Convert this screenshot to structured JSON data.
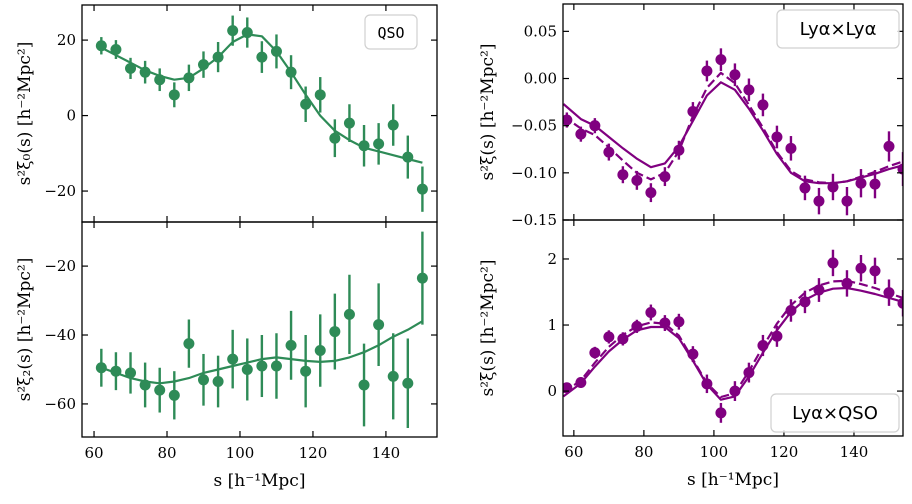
{
  "colors": {
    "qso": "#2e8b57",
    "lya": "#800080"
  },
  "chart_data": [
    {
      "id": "qso-monopole",
      "type": "scatter",
      "panel": "top-left",
      "legend": "QSO",
      "legend_placement": "top-right",
      "ylabel": "s²ξ₀(s) [h⁻²Mpc²]",
      "xlabel": "",
      "xlim": [
        56.7,
        154
      ],
      "ylim": [
        -28.2,
        29.3
      ],
      "xticks": [
        60,
        80,
        100,
        120,
        140
      ],
      "yticks": [
        -20,
        0,
        20
      ],
      "ytick_labels": [
        "−20",
        "0",
        "20"
      ],
      "points": {
        "x": [
          62,
          66,
          70,
          74,
          78,
          82,
          86,
          90,
          94,
          98,
          102,
          106,
          110,
          114,
          118,
          122,
          126,
          130,
          134,
          138,
          142,
          146,
          150
        ],
        "y": [
          18.5,
          17.5,
          12.5,
          11.5,
          9.5,
          5.5,
          10,
          13.5,
          15.5,
          22.5,
          22,
          15.5,
          17,
          11.5,
          3,
          5.5,
          -6,
          -2,
          -8,
          -7.5,
          -2.5,
          -11,
          -19.5
        ],
        "err": [
          2.3,
          2.5,
          2.8,
          3,
          3,
          3.3,
          3.5,
          3.5,
          4,
          4,
          4,
          4.2,
          4.5,
          4.5,
          4.7,
          4.7,
          5,
          5,
          5.5,
          5.5,
          5.5,
          5.7,
          6
        ]
      },
      "series": [
        {
          "name": "model",
          "style": "solid",
          "x": [
            62,
            66,
            70,
            74,
            78,
            82,
            86,
            90,
            94,
            98,
            102,
            106,
            110,
            114,
            118,
            122,
            126,
            130,
            134,
            138,
            142,
            146,
            150
          ],
          "y": [
            18,
            16,
            14,
            12,
            10.5,
            9.5,
            10,
            12.5,
            15.5,
            19.5,
            21.5,
            21,
            17,
            11.5,
            5.5,
            0,
            -4,
            -6.5,
            -8.5,
            -9.5,
            -10.5,
            -11.5,
            -12.5
          ]
        }
      ]
    },
    {
      "id": "qso-quadrupole",
      "type": "scatter",
      "panel": "bottom-left",
      "ylabel": "s²ξ₂(s) [h⁻²Mpc²]",
      "xlabel": "s [h⁻¹Mpc]",
      "xlim": [
        56.7,
        154
      ],
      "ylim": [
        -69.6,
        -7.2
      ],
      "xticks": [
        60,
        80,
        100,
        120,
        140
      ],
      "xtick_labels": [
        "60",
        "80",
        "100",
        "120",
        "140"
      ],
      "yticks": [
        -60,
        -40,
        -20
      ],
      "ytick_labels": [
        "−60",
        "−40",
        "−20"
      ],
      "points": {
        "x": [
          62,
          66,
          70,
          74,
          78,
          82,
          86,
          90,
          94,
          98,
          102,
          106,
          110,
          114,
          118,
          122,
          126,
          130,
          134,
          138,
          142,
          146,
          150
        ],
        "y": [
          -49.5,
          -50.5,
          -51,
          -54.5,
          -56,
          -57.5,
          -42.5,
          -53,
          -53.5,
          -47,
          -50,
          -49,
          -49,
          -43,
          -50.5,
          -44.5,
          -39,
          -34,
          -54.5,
          -37,
          -52,
          -54,
          -23.5
        ],
        "err": [
          5.5,
          5.5,
          6,
          6.5,
          6.5,
          7,
          7,
          7.5,
          7.5,
          8.5,
          9,
          9,
          9.5,
          10,
          10.5,
          10.5,
          11,
          11.5,
          12,
          12,
          12.5,
          13,
          13.5
        ]
      },
      "series": [
        {
          "name": "model",
          "style": "solid",
          "x": [
            62,
            66,
            70,
            74,
            78,
            82,
            86,
            90,
            94,
            98,
            102,
            106,
            110,
            114,
            118,
            122,
            126,
            130,
            134,
            138,
            142,
            146,
            150
          ],
          "y": [
            -49.5,
            -51,
            -52.5,
            -53.5,
            -54,
            -53.5,
            -52.5,
            -51,
            -50,
            -49,
            -48,
            -47,
            -46.5,
            -47,
            -47.5,
            -47.8,
            -47.5,
            -46.5,
            -45,
            -43,
            -40.5,
            -38.5,
            -36
          ]
        }
      ]
    },
    {
      "id": "lya-lya",
      "type": "scatter",
      "panel": "top-right",
      "legend": "Lyα×Lyα",
      "legend_placement": "top-right",
      "ylabel": "s²ξ(s) [h⁻²Mpc²]",
      "xlabel": "",
      "xlim": [
        56.9,
        154
      ],
      "ylim": [
        -0.15,
        0.079
      ],
      "xticks": [
        60,
        80,
        100,
        120,
        140
      ],
      "yticks": [
        -0.15,
        -0.1,
        -0.05,
        0.0,
        0.05
      ],
      "ytick_labels": [
        "−0.15",
        "−0.10",
        "−0.05",
        "0.00",
        "0.05"
      ],
      "points": {
        "x": [
          58,
          62,
          66,
          70,
          74,
          78,
          82,
          86,
          90,
          94,
          98,
          102,
          106,
          110,
          114,
          118,
          122,
          126,
          130,
          134,
          138,
          142,
          146,
          150,
          154
        ],
        "y": [
          -0.044,
          -0.059,
          -0.05,
          -0.078,
          -0.102,
          -0.108,
          -0.121,
          -0.104,
          -0.076,
          -0.035,
          0.008,
          0.02,
          0.004,
          -0.012,
          -0.028,
          -0.062,
          -0.074,
          -0.116,
          -0.13,
          -0.115,
          -0.13,
          -0.111,
          -0.112,
          -0.072,
          -0.096
        ],
        "err": [
          0.008,
          0.008,
          0.008,
          0.009,
          0.009,
          0.01,
          0.01,
          0.01,
          0.01,
          0.01,
          0.011,
          0.012,
          0.012,
          0.012,
          0.012,
          0.012,
          0.013,
          0.013,
          0.014,
          0.014,
          0.015,
          0.015,
          0.015,
          0.016,
          0.018
        ]
      },
      "series": [
        {
          "name": "model-solid",
          "style": "solid",
          "x": [
            57,
            62,
            66,
            70,
            74,
            78,
            82,
            86,
            90,
            94,
            98,
            102,
            106,
            110,
            114,
            118,
            122,
            126,
            130,
            134,
            138,
            142,
            146,
            150,
            154
          ],
          "y": [
            -0.027,
            -0.043,
            -0.05,
            -0.062,
            -0.074,
            -0.085,
            -0.094,
            -0.09,
            -0.072,
            -0.045,
            -0.018,
            -0.004,
            -0.012,
            -0.032,
            -0.055,
            -0.08,
            -0.1,
            -0.109,
            -0.111,
            -0.111,
            -0.109,
            -0.105,
            -0.101,
            -0.096,
            -0.092
          ]
        },
        {
          "name": "model-dashed",
          "style": "dashed",
          "x": [
            57,
            62,
            66,
            70,
            74,
            78,
            82,
            86,
            90,
            94,
            98,
            102,
            106,
            110,
            114,
            118,
            122,
            126,
            130,
            134,
            138,
            142,
            146,
            150,
            154
          ],
          "y": [
            -0.04,
            -0.053,
            -0.06,
            -0.073,
            -0.087,
            -0.1,
            -0.107,
            -0.1,
            -0.077,
            -0.04,
            -0.01,
            0.006,
            -0.005,
            -0.028,
            -0.052,
            -0.078,
            -0.098,
            -0.107,
            -0.11,
            -0.111,
            -0.109,
            -0.104,
            -0.099,
            -0.093,
            -0.088
          ]
        }
      ]
    },
    {
      "id": "lya-qso",
      "type": "scatter",
      "panel": "bottom-right",
      "legend": "Lyα×QSO",
      "legend_placement": "bottom-right",
      "ylabel": "s²ξ(s) [h⁻²Mpc²]",
      "xlabel": "s [h⁻¹Mpc]",
      "xlim": [
        56.9,
        154
      ],
      "ylim": [
        -0.68,
        2.59
      ],
      "xticks": [
        60,
        80,
        100,
        120,
        140
      ],
      "xtick_labels": [
        "60",
        "80",
        "100",
        "120",
        "140"
      ],
      "yticks": [
        0,
        1,
        2
      ],
      "ytick_labels": [
        "0",
        "1",
        "2"
      ],
      "points": {
        "x": [
          58,
          62,
          66,
          70,
          74,
          78,
          82,
          86,
          90,
          94,
          98,
          102,
          106,
          110,
          114,
          118,
          122,
          126,
          130,
          134,
          138,
          142,
          146,
          150,
          154
        ],
        "y": [
          0.05,
          0.13,
          0.58,
          0.82,
          0.79,
          0.98,
          1.19,
          1.03,
          1.05,
          0.56,
          0.11,
          -0.33,
          0.0,
          0.28,
          0.69,
          0.83,
          1.22,
          1.35,
          1.53,
          1.94,
          1.63,
          1.86,
          1.82,
          1.49,
          1.33
        ],
        "err": [
          0.08,
          0.08,
          0.09,
          0.1,
          0.1,
          0.1,
          0.12,
          0.12,
          0.12,
          0.12,
          0.14,
          0.15,
          0.15,
          0.15,
          0.16,
          0.16,
          0.17,
          0.17,
          0.18,
          0.2,
          0.2,
          0.2,
          0.2,
          0.2,
          0.2
        ]
      },
      "series": [
        {
          "name": "model-solid",
          "style": "solid",
          "x": [
            57,
            62,
            66,
            70,
            74,
            78,
            82,
            86,
            90,
            94,
            98,
            102,
            106,
            110,
            114,
            118,
            122,
            126,
            130,
            134,
            138,
            142,
            146,
            150,
            154
          ],
          "y": [
            -0.08,
            0.12,
            0.37,
            0.6,
            0.78,
            0.92,
            0.97,
            0.97,
            0.8,
            0.46,
            0.1,
            -0.13,
            -0.08,
            0.22,
            0.58,
            0.92,
            1.2,
            1.38,
            1.49,
            1.55,
            1.56,
            1.52,
            1.47,
            1.41,
            1.35
          ]
        },
        {
          "name": "model-dashed",
          "style": "dashed",
          "x": [
            57,
            62,
            66,
            70,
            74,
            78,
            82,
            86,
            90,
            94,
            98,
            102,
            106,
            110,
            114,
            118,
            122,
            126,
            130,
            134,
            138,
            142,
            146,
            150,
            154
          ],
          "y": [
            -0.02,
            0.16,
            0.43,
            0.67,
            0.85,
            0.98,
            1.04,
            1.02,
            0.84,
            0.48,
            0.12,
            -0.09,
            -0.03,
            0.3,
            0.67,
            1.02,
            1.3,
            1.49,
            1.6,
            1.66,
            1.67,
            1.62,
            1.56,
            1.48,
            1.41
          ]
        }
      ]
    }
  ]
}
